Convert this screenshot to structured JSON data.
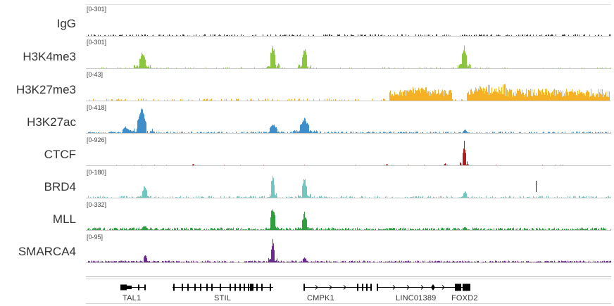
{
  "tracks": [
    {
      "name": "IgG",
      "range": "[0-301]",
      "color": "#333333",
      "profile": [
        [
          0.1,
          0.02
        ]
      ]
    },
    {
      "name": "H3K4me3",
      "range": "[0-301]",
      "color": "#8cc63f"
    },
    {
      "name": "H3K27me3",
      "range": "[0-43]",
      "color": "#f5b026"
    },
    {
      "name": "H3K27ac",
      "range": "[0-418]",
      "color": "#3f8ecc"
    },
    {
      "name": "CTCF",
      "range": "[0-926]",
      "color": "#b01c1c"
    },
    {
      "name": "BRD4",
      "range": "[0-180]",
      "color": "#72c6c0"
    },
    {
      "name": "MLL",
      "range": "[0-332]",
      "color": "#2e9e3f"
    },
    {
      "name": "SMARCA4",
      "range": "[0-95]",
      "color": "#6a2c8e"
    }
  ],
  "genes": [
    "TAL1",
    "STIL",
    "CMPK1",
    "LINC01389",
    "FOXD2"
  ]
}
